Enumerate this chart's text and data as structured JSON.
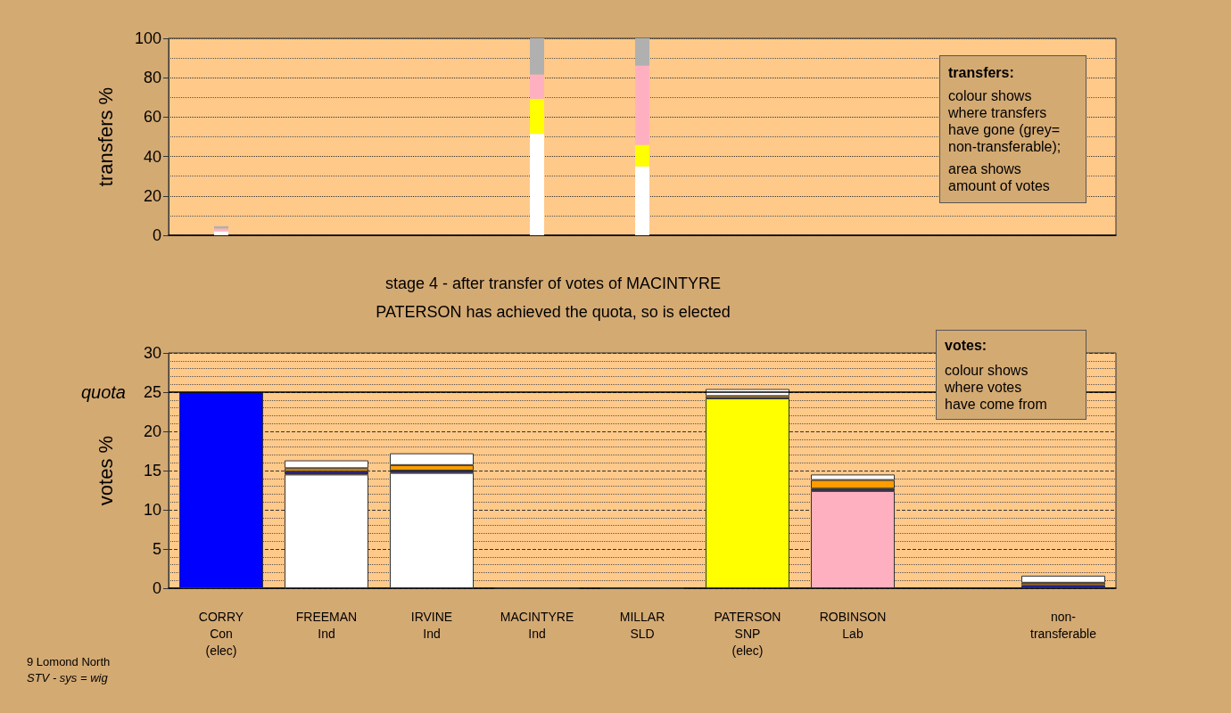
{
  "chart_data": [
    {
      "type": "bar",
      "ylabel": "transfers %",
      "stacked": true,
      "grid": true,
      "tick_labels": "y",
      "categories": [
        null,
        null,
        null,
        null,
        null,
        null,
        null,
        null,
        null
      ],
      "ylim": [
        0,
        100
      ],
      "yticks": [
        0,
        20,
        40,
        60,
        80,
        100
      ],
      "series": [
        {
          "color": "#ffffff",
          "values": [
            2.0,
            null,
            null,
            51.5,
            35.0,
            null,
            null,
            null,
            null
          ]
        },
        {
          "color": "#ffff00",
          "values": [
            null,
            null,
            null,
            17.8,
            10.9,
            null,
            null,
            null,
            null
          ]
        },
        {
          "color": "#ffb0c0",
          "values": [
            1.4,
            null,
            null,
            12.3,
            40.2,
            null,
            null,
            null,
            null
          ]
        },
        {
          "color": "#b0b0b0",
          "values": [
            1.2,
            null,
            null,
            18.4,
            13.9,
            null,
            null,
            null,
            null
          ]
        }
      ],
      "annotations": [
        "transfers:",
        "colour shows where transfers have gone (grey= non-transferable);",
        "area shows amount of votes"
      ]
    },
    {
      "type": "bar",
      "title": "stage 4 - after transfer of votes of MACINTYRE",
      "subtitle": "PATERSON has achieved the quota, so is elected",
      "ylabel": "votes %",
      "stacked": true,
      "grid": true,
      "categories": [
        "CORRY\nCon\n(elec)",
        "FREEMAN\nInd",
        "IRVINE\nInd",
        "MACINTYRE\nInd",
        "MILLAR\nSLD",
        "PATERSON\nSNP\n(elec)",
        "ROBINSON\nLab",
        null,
        "non-\ntransferable"
      ],
      "ylim": [
        0,
        30
      ],
      "yticks": [
        0,
        5,
        10,
        15,
        20,
        25,
        30
      ],
      "series": [
        {
          "colors": [
            "#0000ff",
            "#ffffff",
            "#ffffff",
            "#333333",
            "#333333",
            "#ffff00",
            "#ffb0c0",
            "#ffffff",
            "#ffffff"
          ],
          "values": [
            25,
            14.5,
            14.7,
            0,
            0,
            24.2,
            12.4,
            null,
            null
          ]
        },
        {
          "color": "#1c1c9c",
          "values": [
            null,
            0.4,
            0.3,
            null,
            null,
            null,
            0.3,
            null,
            0.4
          ]
        },
        {
          "color": "#ff9c00",
          "values": [
            null,
            0.4,
            0.7,
            null,
            null,
            0.3,
            1.1,
            null,
            0.3
          ]
        },
        {
          "color": "#ffffff",
          "values": [
            null,
            1.0,
            1.5,
            null,
            null,
            0.9,
            0.7,
            null,
            0.9
          ]
        }
      ],
      "ref_lines": [
        {
          "axis": "y",
          "value": 25,
          "label": "quota"
        }
      ],
      "annotations": [
        "votes:",
        "colour shows where votes have come from",
        "9 Lomond North",
        "STV - sys = wig"
      ]
    }
  ]
}
